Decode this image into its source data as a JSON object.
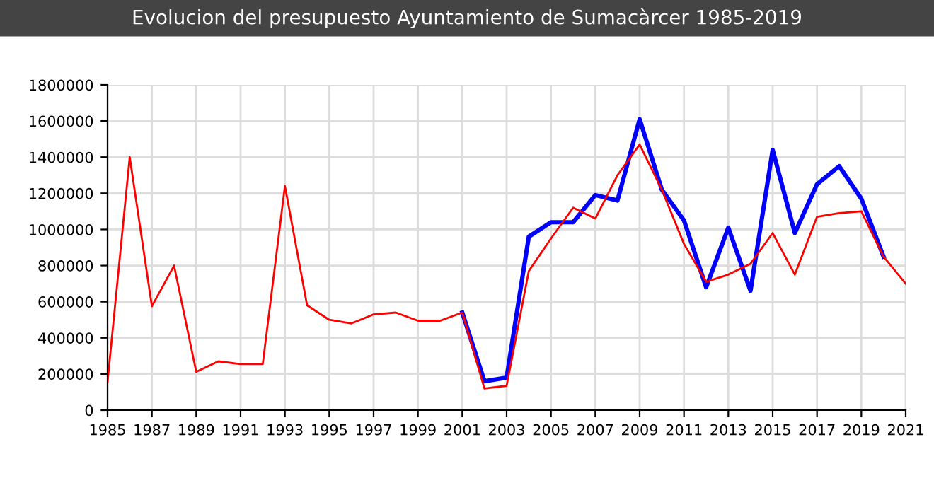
{
  "chart_data": {
    "type": "line",
    "title": "Evolucion del presupuesto Ayuntamiento de Sumacàrcer 1985-2019",
    "x": [
      1985,
      1986,
      1987,
      1988,
      1989,
      1990,
      1991,
      1992,
      1993,
      1994,
      1995,
      1996,
      1997,
      1998,
      1999,
      2000,
      2001,
      2002,
      2003,
      2004,
      2005,
      2006,
      2007,
      2008,
      2009,
      2010,
      2011,
      2012,
      2013,
      2014,
      2015,
      2016,
      2017,
      2018,
      2019,
      2020,
      2021
    ],
    "series": [
      {
        "color": "#0000ff",
        "x": [
          2001,
          2002,
          2003,
          2004,
          2005,
          2006,
          2007,
          2008,
          2009,
          2010,
          2011,
          2012,
          2013,
          2014,
          2015,
          2016,
          2017,
          2018,
          2019,
          2020
        ],
        "values": [
          540000,
          160000,
          180000,
          960000,
          1040000,
          1040000,
          1190000,
          1160000,
          1610000,
          1220000,
          1050000,
          680000,
          1010000,
          660000,
          1440000,
          980000,
          1250000,
          1350000,
          1170000,
          850000
        ]
      },
      {
        "color": "#ff0000",
        "values": [
          157000,
          1400000,
          575000,
          800000,
          212000,
          270000,
          255000,
          255000,
          1240000,
          580000,
          500000,
          480000,
          530000,
          540000,
          495000,
          495000,
          540000,
          120000,
          135000,
          770000,
          950000,
          1120000,
          1060000,
          1300000,
          1470000,
          1220000,
          920000,
          710000,
          750000,
          810000,
          980000,
          750000,
          1070000,
          1090000,
          1100000,
          850000,
          700000
        ]
      }
    ],
    "xlim": [
      1985,
      2021
    ],
    "xticks": [
      1985,
      1987,
      1989,
      1991,
      1993,
      1995,
      1997,
      1999,
      2001,
      2003,
      2005,
      2007,
      2009,
      2011,
      2013,
      2015,
      2017,
      2019,
      2021
    ],
    "ylim": [
      0,
      1800000
    ],
    "yticks": [
      0,
      200000,
      400000,
      600000,
      800000,
      1000000,
      1200000,
      1400000,
      1600000,
      1800000
    ],
    "grid": true,
    "legend": false,
    "marker": "none",
    "line_style": "solid"
  }
}
